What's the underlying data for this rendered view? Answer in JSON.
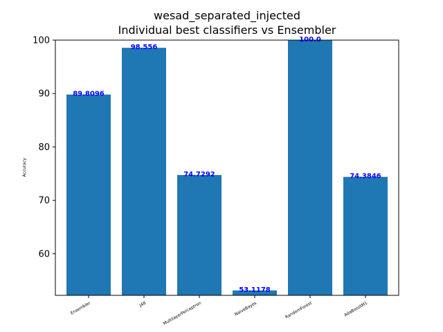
{
  "chart_data": {
    "type": "bar",
    "title_lines": [
      "wesad_separated_injected",
      "Individual best classifiers vs Ensembler"
    ],
    "xlabel": "",
    "ylabel": "Accuracy",
    "categories": [
      "Ensembler",
      "J48",
      "MultilayerPerceptron",
      "NaiveBayes",
      "RandomForest",
      "AdaBoostM1"
    ],
    "values": [
      89.8096,
      98.556,
      74.7292,
      53.1178,
      100.0,
      74.3846
    ],
    "value_labels": [
      "89.8096",
      "98.556",
      "74.7292",
      "53.1178",
      "100.0",
      "74.3846"
    ],
    "ylim": [
      52.2,
      100
    ],
    "yticks": [
      60,
      70,
      80,
      90,
      100
    ],
    "bar_color": "#1f77b4",
    "label_color": "#0000ff",
    "grid": false,
    "legend": false
  }
}
